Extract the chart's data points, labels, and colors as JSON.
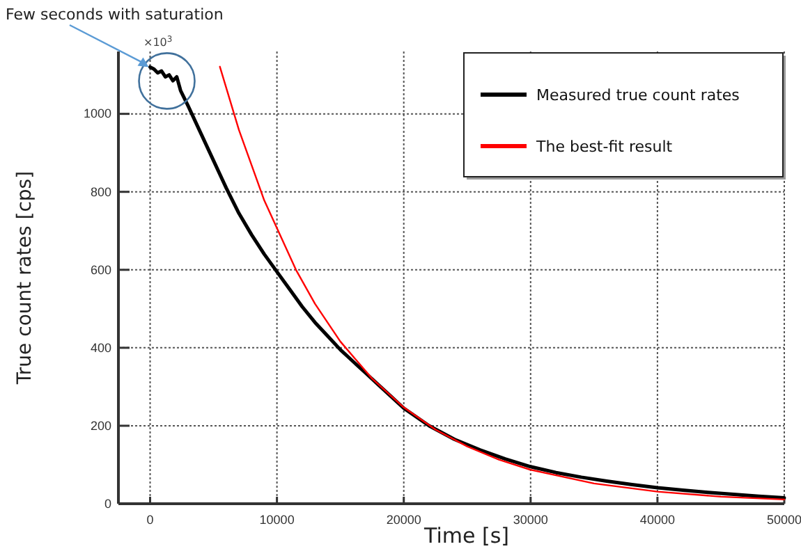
{
  "chart_data": {
    "type": "line",
    "xlabel": "Time [s]",
    "ylabel": "True count rates [cps]",
    "xlim": [
      -2500,
      50000
    ],
    "ylim": [
      0,
      1160
    ],
    "xticks": [
      0,
      10000,
      20000,
      30000,
      40000,
      50000
    ],
    "yticks": [
      0,
      200,
      400,
      600,
      800,
      1000
    ],
    "grid": true,
    "legend": "top right",
    "marker": "none",
    "line_style": "solid",
    "annotations": [
      "×10$^{3}$",
      "Few seconds with saturation"
    ],
    "series": [
      {
        "name": "Measured true count rates",
        "color": "#000000",
        "x": [
          0,
          300,
          600,
          900,
          1200,
          1500,
          1800,
          2100,
          2400,
          3000,
          4000,
          5000,
          6000,
          7000,
          8000,
          9000,
          10000,
          11000,
          12000,
          13000,
          14000,
          15000,
          16000,
          17000,
          18000,
          19000,
          20000,
          22000,
          24000,
          26000,
          28000,
          30000,
          32000,
          34000,
          36000,
          38000,
          40000,
          42000,
          44000,
          46000,
          48000,
          50000
        ],
        "values": [
          1120,
          1115,
          1105,
          1110,
          1095,
          1100,
          1085,
          1095,
          1060,
          1020,
          950,
          880,
          810,
          745,
          690,
          640,
          595,
          550,
          505,
          465,
          430,
          395,
          365,
          335,
          305,
          275,
          245,
          200,
          165,
          138,
          115,
          95,
          80,
          68,
          58,
          49,
          41,
          35,
          29,
          24,
          19,
          15
        ]
      },
      {
        "name": "The best-fit result",
        "color": "#ff0000",
        "x": [
          5500,
          7000,
          9000,
          11500,
          13000,
          15000,
          17500,
          20000,
          22500,
          25000,
          27500,
          30000,
          35000,
          40000,
          45000,
          50000
        ],
        "values": [
          1121,
          959,
          778,
          600,
          513,
          416,
          321,
          247,
          190,
          147,
          113,
          87,
          52,
          31,
          18,
          11
        ]
      }
    ]
  }
}
